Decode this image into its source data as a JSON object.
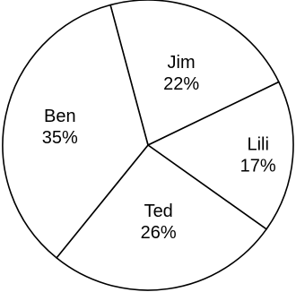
{
  "chart_data": {
    "type": "pie",
    "slices": [
      {
        "label": "Jim",
        "percent_text": "22%",
        "value": 22
      },
      {
        "label": "Lili",
        "percent_text": "17%",
        "value": 17
      },
      {
        "label": "Ted",
        "percent_text": "26%",
        "value": 26
      },
      {
        "label": "Ben",
        "percent_text": "35%",
        "value": 35
      }
    ],
    "start_angle_deg": 345,
    "direction": "clockwise",
    "legend": "none",
    "colors": {
      "fill": "#ffffff",
      "stroke": "#000000"
    }
  }
}
